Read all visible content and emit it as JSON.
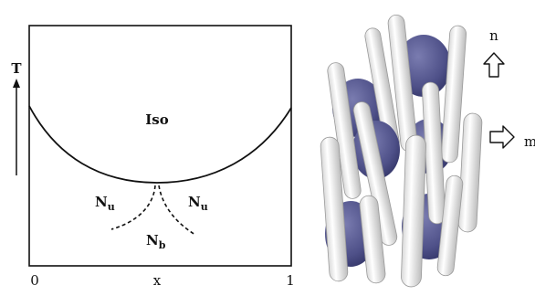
{
  "phase_diagram": {
    "y_axis_label": "T",
    "x_axis_label": "x",
    "x_tick_left": "0",
    "x_tick_right": "1",
    "regions": {
      "isotropic": "Iso",
      "uniaxial_left": {
        "main": "N",
        "sub": "u"
      },
      "uniaxial_right": {
        "main": "N",
        "sub": "u"
      },
      "biaxial": {
        "main": "N",
        "sub": "b"
      }
    }
  },
  "director_labels": {
    "n": "n",
    "m": "m"
  },
  "colors": {
    "line": "#111111",
    "disc_fill": "#55578f",
    "rod_fill": "#f1f1f1",
    "rod_stroke": "#9a9a9a"
  }
}
